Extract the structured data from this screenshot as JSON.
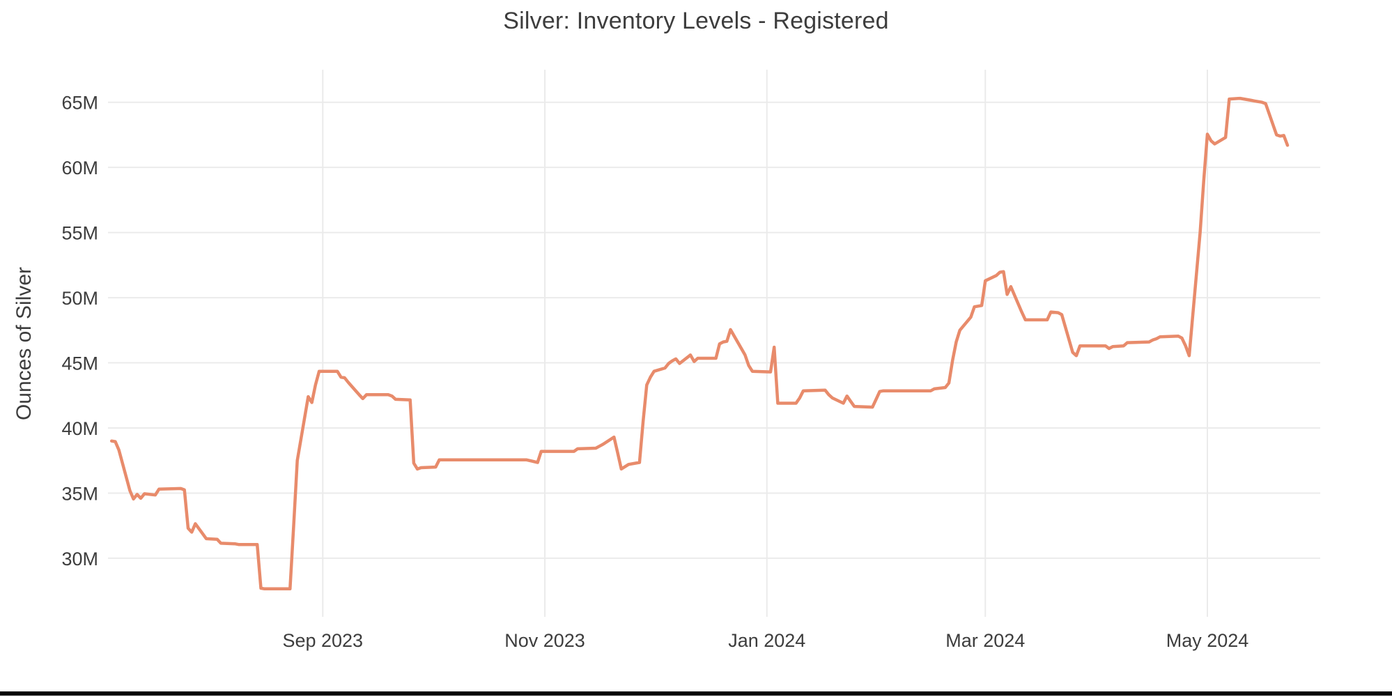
{
  "chart": {
    "title": "Silver: Inventory Levels - Registered",
    "y_axis_title": "Ounces of Silver",
    "colors": {
      "line": "#e88b6b",
      "grid": "#ebebeb",
      "text": "#3d3d3d",
      "background": "#ffffff",
      "bottom_bar": "#000000"
    },
    "y_ticks": [
      {
        "value": 30,
        "label": "30M"
      },
      {
        "value": 35,
        "label": "35M"
      },
      {
        "value": 40,
        "label": "40M"
      },
      {
        "value": 45,
        "label": "45M"
      },
      {
        "value": 50,
        "label": "50M"
      },
      {
        "value": 55,
        "label": "55M"
      },
      {
        "value": 60,
        "label": "60M"
      },
      {
        "value": 65,
        "label": "65M"
      }
    ],
    "x_ticks": [
      {
        "date": "2023-09-01",
        "label": "Sep 2023"
      },
      {
        "date": "2023-11-01",
        "label": "Nov 2023"
      },
      {
        "date": "2024-01-01",
        "label": "Jan 2024"
      },
      {
        "date": "2024-03-01",
        "label": "Mar 2024"
      },
      {
        "date": "2024-05-01",
        "label": "May 2024"
      }
    ]
  },
  "chart_data": {
    "type": "line",
    "title": "Silver: Inventory Levels - Registered",
    "xlabel": "",
    "ylabel": "Ounces of Silver",
    "unit": "million troy ounces",
    "x_range": [
      "2023-07-04",
      "2024-06-01"
    ],
    "ylim": [
      25.5,
      67.5
    ],
    "grid": true,
    "legend": false,
    "series": [
      {
        "name": "Registered Silver Inventory",
        "color": "#e88b6b",
        "points": [
          [
            "2023-07-05",
            39.0
          ],
          [
            "2023-07-06",
            38.95
          ],
          [
            "2023-07-07",
            38.3
          ],
          [
            "2023-07-10",
            35.2
          ],
          [
            "2023-07-11",
            34.55
          ],
          [
            "2023-07-12",
            34.9
          ],
          [
            "2023-07-13",
            34.6
          ],
          [
            "2023-07-14",
            34.95
          ],
          [
            "2023-07-17",
            34.85
          ],
          [
            "2023-07-18",
            35.3
          ],
          [
            "2023-07-24",
            35.35
          ],
          [
            "2023-07-25",
            35.25
          ],
          [
            "2023-07-26",
            32.3
          ],
          [
            "2023-07-27",
            32.0
          ],
          [
            "2023-07-28",
            32.65
          ],
          [
            "2023-07-31",
            31.5
          ],
          [
            "2023-08-03",
            31.45
          ],
          [
            "2023-08-04",
            31.15
          ],
          [
            "2023-08-08",
            31.1
          ],
          [
            "2023-08-09",
            31.05
          ],
          [
            "2023-08-14",
            31.05
          ],
          [
            "2023-08-15",
            27.7
          ],
          [
            "2023-08-16",
            27.65
          ],
          [
            "2023-08-23",
            27.65
          ],
          [
            "2023-08-24",
            32.5
          ],
          [
            "2023-08-25",
            37.5
          ],
          [
            "2023-08-28",
            42.4
          ],
          [
            "2023-08-29",
            41.95
          ],
          [
            "2023-08-30",
            43.3
          ],
          [
            "2023-08-31",
            44.35
          ],
          [
            "2023-09-05",
            44.35
          ],
          [
            "2023-09-06",
            43.9
          ],
          [
            "2023-09-07",
            43.85
          ],
          [
            "2023-09-08",
            43.5
          ],
          [
            "2023-09-11",
            42.55
          ],
          [
            "2023-09-12",
            42.25
          ],
          [
            "2023-09-13",
            42.55
          ],
          [
            "2023-09-19",
            42.55
          ],
          [
            "2023-09-20",
            42.45
          ],
          [
            "2023-09-21",
            42.2
          ],
          [
            "2023-09-25",
            42.15
          ],
          [
            "2023-09-26",
            37.3
          ],
          [
            "2023-09-27",
            36.85
          ],
          [
            "2023-09-28",
            36.95
          ],
          [
            "2023-10-02",
            37.0
          ],
          [
            "2023-10-03",
            37.55
          ],
          [
            "2023-10-27",
            37.55
          ],
          [
            "2023-10-30",
            37.35
          ],
          [
            "2023-10-31",
            38.2
          ],
          [
            "2023-11-09",
            38.2
          ],
          [
            "2023-11-10",
            38.4
          ],
          [
            "2023-11-15",
            38.45
          ],
          [
            "2023-11-16",
            38.6
          ],
          [
            "2023-11-17",
            38.75
          ],
          [
            "2023-11-20",
            39.3
          ],
          [
            "2023-11-21",
            38.1
          ],
          [
            "2023-11-22",
            36.85
          ],
          [
            "2023-11-24",
            37.2
          ],
          [
            "2023-11-27",
            37.35
          ],
          [
            "2023-11-28",
            40.5
          ],
          [
            "2023-11-29",
            43.3
          ],
          [
            "2023-11-30",
            43.9
          ],
          [
            "2023-12-01",
            44.35
          ],
          [
            "2023-12-04",
            44.6
          ],
          [
            "2023-12-05",
            44.95
          ],
          [
            "2023-12-06",
            45.15
          ],
          [
            "2023-12-07",
            45.3
          ],
          [
            "2023-12-08",
            44.95
          ],
          [
            "2023-12-11",
            45.6
          ],
          [
            "2023-12-12",
            45.1
          ],
          [
            "2023-12-13",
            45.35
          ],
          [
            "2023-12-18",
            45.35
          ],
          [
            "2023-12-19",
            46.45
          ],
          [
            "2023-12-20",
            46.6
          ],
          [
            "2023-12-21",
            46.65
          ],
          [
            "2023-12-22",
            47.55
          ],
          [
            "2023-12-26",
            45.6
          ],
          [
            "2023-12-27",
            44.8
          ],
          [
            "2023-12-28",
            44.35
          ],
          [
            "2024-01-02",
            44.3
          ],
          [
            "2024-01-03",
            46.2
          ],
          [
            "2024-01-04",
            41.9
          ],
          [
            "2024-01-09",
            41.9
          ],
          [
            "2024-01-10",
            42.3
          ],
          [
            "2024-01-11",
            42.85
          ],
          [
            "2024-01-17",
            42.9
          ],
          [
            "2024-01-18",
            42.55
          ],
          [
            "2024-01-19",
            42.3
          ],
          [
            "2024-01-22",
            41.9
          ],
          [
            "2024-01-23",
            42.45
          ],
          [
            "2024-01-24",
            42.05
          ],
          [
            "2024-01-25",
            41.65
          ],
          [
            "2024-01-30",
            41.6
          ],
          [
            "2024-01-31",
            42.2
          ],
          [
            "2024-02-01",
            42.8
          ],
          [
            "2024-02-02",
            42.85
          ],
          [
            "2024-02-15",
            42.85
          ],
          [
            "2024-02-16",
            43.0
          ],
          [
            "2024-02-19",
            43.1
          ],
          [
            "2024-02-20",
            43.45
          ],
          [
            "2024-02-21",
            45.2
          ],
          [
            "2024-02-22",
            46.6
          ],
          [
            "2024-02-23",
            47.5
          ],
          [
            "2024-02-26",
            48.5
          ],
          [
            "2024-02-27",
            49.3
          ],
          [
            "2024-02-29",
            49.4
          ],
          [
            "2024-03-01",
            51.3
          ],
          [
            "2024-03-04",
            51.7
          ],
          [
            "2024-03-05",
            51.95
          ],
          [
            "2024-03-06",
            52.0
          ],
          [
            "2024-03-07",
            50.25
          ],
          [
            "2024-03-08",
            50.85
          ],
          [
            "2024-03-11",
            48.9
          ],
          [
            "2024-03-12",
            48.3
          ],
          [
            "2024-03-18",
            48.3
          ],
          [
            "2024-03-19",
            48.9
          ],
          [
            "2024-03-21",
            48.85
          ],
          [
            "2024-03-22",
            48.7
          ],
          [
            "2024-03-25",
            45.8
          ],
          [
            "2024-03-26",
            45.55
          ],
          [
            "2024-03-27",
            46.3
          ],
          [
            "2024-04-03",
            46.3
          ],
          [
            "2024-04-04",
            46.1
          ],
          [
            "2024-04-05",
            46.25
          ],
          [
            "2024-04-08",
            46.3
          ],
          [
            "2024-04-09",
            46.55
          ],
          [
            "2024-04-15",
            46.6
          ],
          [
            "2024-04-16",
            46.75
          ],
          [
            "2024-04-17",
            46.85
          ],
          [
            "2024-04-18",
            47.0
          ],
          [
            "2024-04-23",
            47.05
          ],
          [
            "2024-04-24",
            46.9
          ],
          [
            "2024-04-25",
            46.3
          ],
          [
            "2024-04-26",
            45.55
          ],
          [
            "2024-04-29",
            55.0
          ],
          [
            "2024-04-30",
            59.0
          ],
          [
            "2024-05-01",
            62.55
          ],
          [
            "2024-05-02",
            62.05
          ],
          [
            "2024-05-03",
            61.8
          ],
          [
            "2024-05-06",
            62.3
          ],
          [
            "2024-05-07",
            65.25
          ],
          [
            "2024-05-10",
            65.3
          ],
          [
            "2024-05-13",
            65.15
          ],
          [
            "2024-05-14",
            65.1
          ],
          [
            "2024-05-16",
            65.0
          ],
          [
            "2024-05-17",
            64.9
          ],
          [
            "2024-05-20",
            62.5
          ],
          [
            "2024-05-21",
            62.4
          ],
          [
            "2024-05-22",
            62.45
          ],
          [
            "2024-05-23",
            61.7
          ]
        ]
      }
    ]
  }
}
